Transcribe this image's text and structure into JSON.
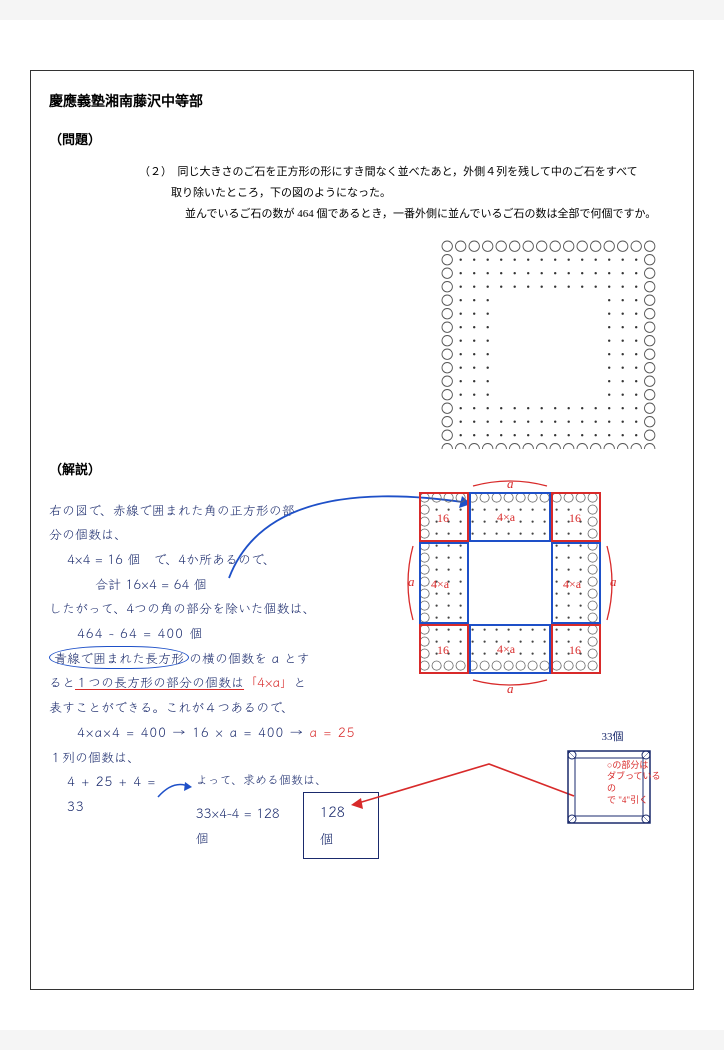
{
  "title": "慶應義塾湘南藤沢中等部",
  "problem_label": "（問題）",
  "problem": {
    "num": "（２）",
    "line1": "同じ大きさのご石を正方形の形にすき間なく並べたあと，外側４列を残して中のご石をすべて",
    "line2": "取り除いたところ，下の図のようになった。",
    "line3": "並んでいるご石の数が 464 個であるとき，一番外側に並んでいるご石の数は全部で何個ですか。"
  },
  "solution_label": "（解説）",
  "hand": {
    "l1": "右の図で、赤線で囲まれた角の正方形の部",
    "l2": "分の個数は、",
    "l3": "4×4 = 16 個　で、4か所あるので、",
    "l4": "合計 16×4 = 64 個",
    "l5": "したがって、4つの角の部分を除いた個数は、",
    "l6": "464 − 64 = 400 個",
    "l7a": "青線で囲まれた長方形",
    "l7b": "の横の個数を a とす",
    "l8a": "ると",
    "l8b": "１つの長方形の部分の個数は",
    "l8c": "「4×a」",
    "l8d": "と",
    "l9": "表すことができる。これが４つあるので、",
    "l10a": "4×a×4 = 400 → 16 × a = 400 → ",
    "l10b": "a = 25",
    "l11": "１列の個数は、",
    "l12": "4 + 25 + 4 = 33",
    "l13": "よって、求める個数は、",
    "l14": "33×4−4 = 128 個",
    "answer": "128 個",
    "note_red_1": "○の部分は",
    "note_red_2": "ダブっているの",
    "note_red_3": "で \"4\"引く",
    "d3_label": "33個"
  },
  "colors": {
    "ink": "#1a2a6c",
    "red": "#d82a2a",
    "blue_line": "#1e50c8",
    "stone_stroke": "#555555"
  },
  "diagram_labels": {
    "a": "a",
    "fourxa": "4×a",
    "sixteen": "16"
  }
}
